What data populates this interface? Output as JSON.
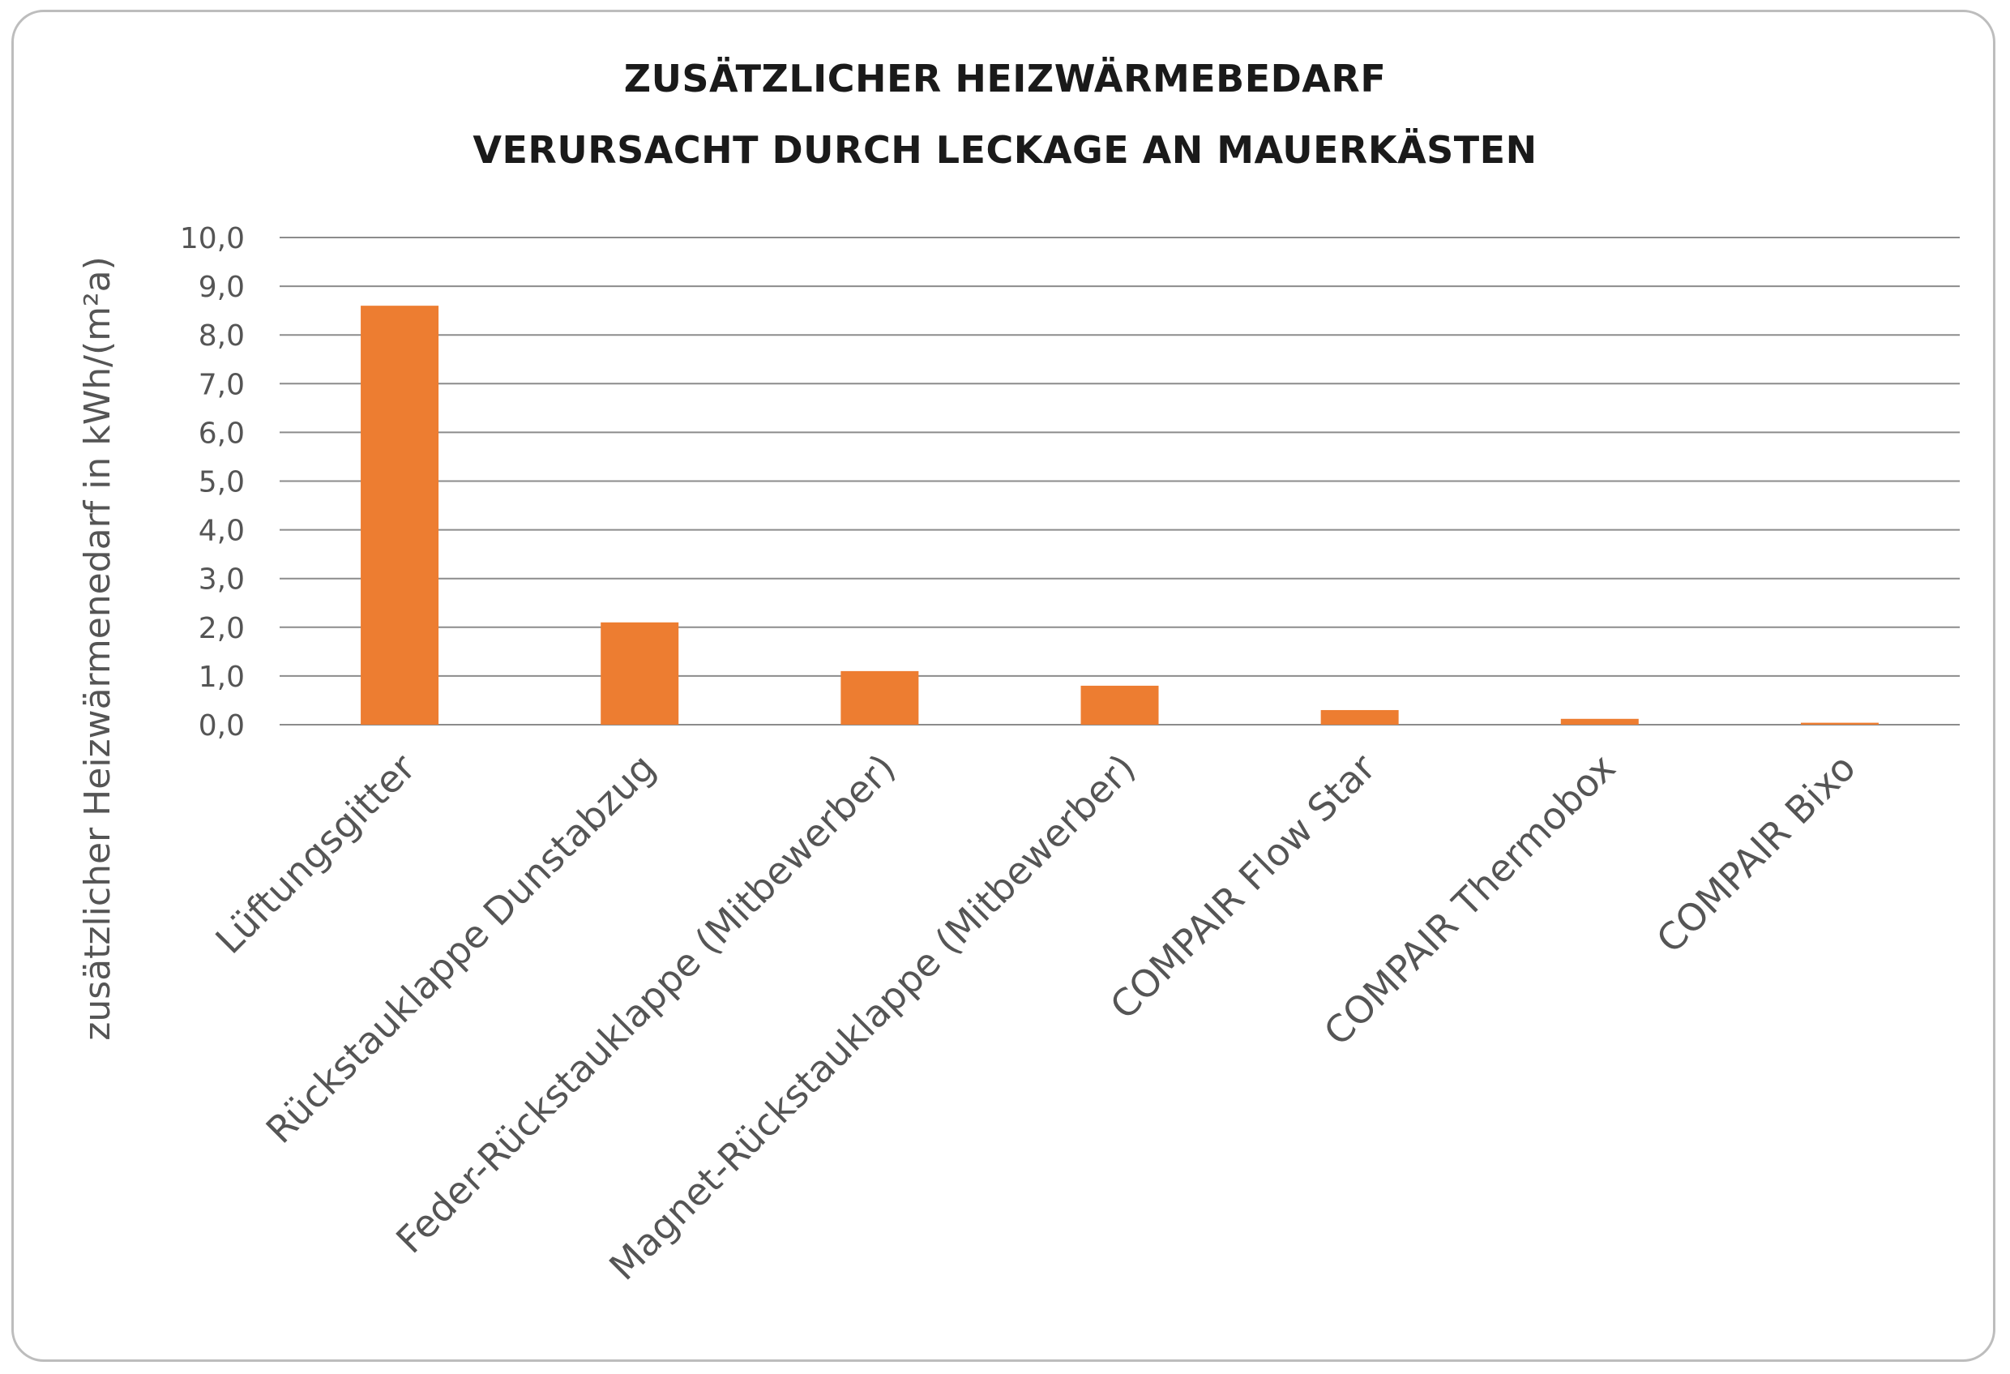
{
  "chart_data": {
    "type": "bar",
    "title_lines": [
      "ZUSÄTZLICHER HEIZWÄRMEBEDARF",
      "VERURSACHT DURCH LECKAGE AN MAUERKÄSTEN"
    ],
    "ylabel": "zusätzlicher Heizwärmenedarf in kWh/(m²a)",
    "xlabel": "",
    "ylim": [
      0,
      10
    ],
    "yticks": [
      "0,0",
      "1,0",
      "2,0",
      "3,0",
      "4,0",
      "5,0",
      "6,0",
      "7,0",
      "8,0",
      "9,0",
      "10,0"
    ],
    "grid": true,
    "legend": "none",
    "categories": [
      "Lüftungsgitter",
      "Rückstauklappe Dunstabzug",
      "Feder-Rückstauklappe (Mitbewerber)",
      "Magnet-Rückstauklappe (Mitbewerber)",
      "COMPAIR Flow Star",
      "COMPAIR Thermobox",
      "COMPAIR Bixo"
    ],
    "values": [
      8.6,
      2.1,
      1.1,
      0.8,
      0.3,
      0.12,
      0.04
    ],
    "bar_color": "#ED7D31",
    "grid_color": "#8c8c8c"
  }
}
